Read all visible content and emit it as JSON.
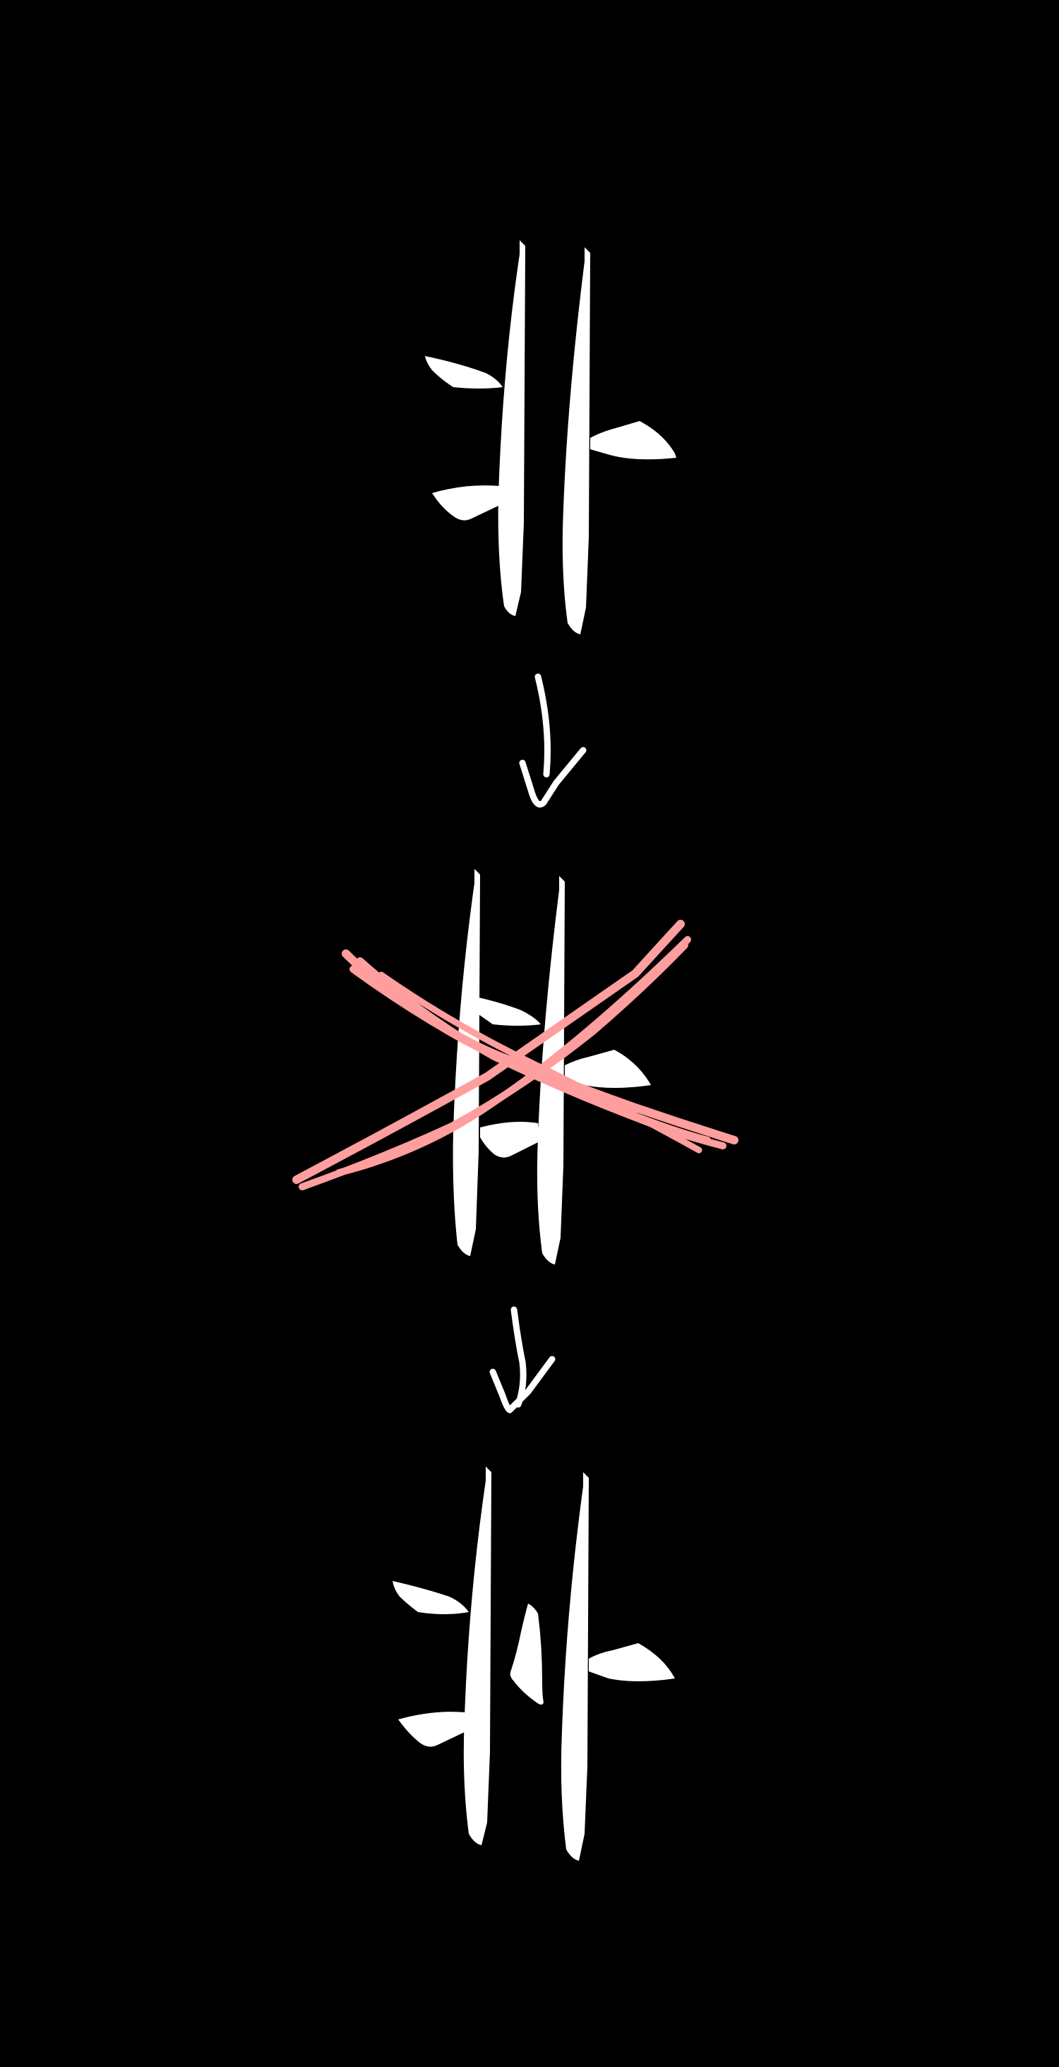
{
  "diagram": {
    "background_color": "#000000",
    "glyph_color": "#ffffff",
    "cross_out_color": "#ff9e9e",
    "steps": [
      {
        "name": "original-glyph",
        "description_visible": ""
      },
      {
        "name": "crossed-out-glyph",
        "crossed_out": true
      },
      {
        "name": "corrected-glyph"
      }
    ],
    "arrows": [
      {
        "name": "arrow-down-1",
        "icon": "down-arrow-icon"
      },
      {
        "name": "arrow-down-2",
        "icon": "down-arrow-icon"
      }
    ]
  }
}
